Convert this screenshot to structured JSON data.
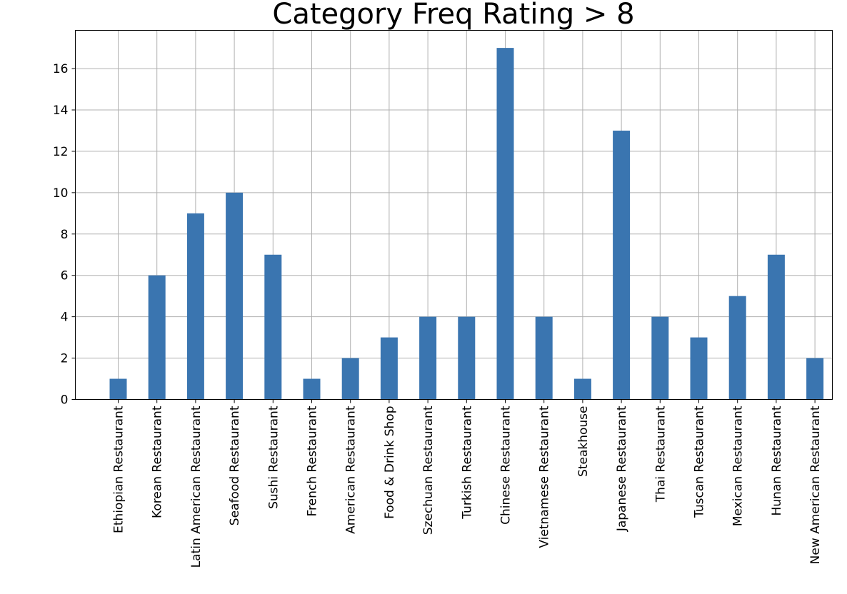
{
  "chart_data": {
    "type": "bar",
    "title": "Category Freq Rating > 8",
    "xlabel": "",
    "ylabel": "",
    "categories": [
      "Ethiopian Restaurant",
      "Korean Restaurant",
      "Latin American Restaurant",
      "Seafood Restaurant",
      "Sushi Restaurant",
      "French Restaurant",
      "American Restaurant",
      "Food & Drink Shop",
      "Szechuan Restaurant",
      "Turkish Restaurant",
      "Chinese Restaurant",
      "Vietnamese Restaurant",
      "Steakhouse",
      "Japanese Restaurant",
      "Thai Restaurant",
      "Tuscan Restaurant",
      "Mexican Restaurant",
      "Hunan Restaurant",
      "New American Restaurant"
    ],
    "values": [
      1,
      6,
      9,
      10,
      7,
      1,
      2,
      3,
      4,
      4,
      17,
      4,
      1,
      13,
      4,
      3,
      5,
      7,
      2
    ],
    "yticks": [
      "0",
      "2",
      "4",
      "6",
      "8",
      "10",
      "12",
      "14",
      "16"
    ],
    "ylim": [
      0,
      17.85
    ],
    "grid": true,
    "legend": "none",
    "bar_color": "#3a75b0",
    "grid_color": "#b0b0b0"
  }
}
